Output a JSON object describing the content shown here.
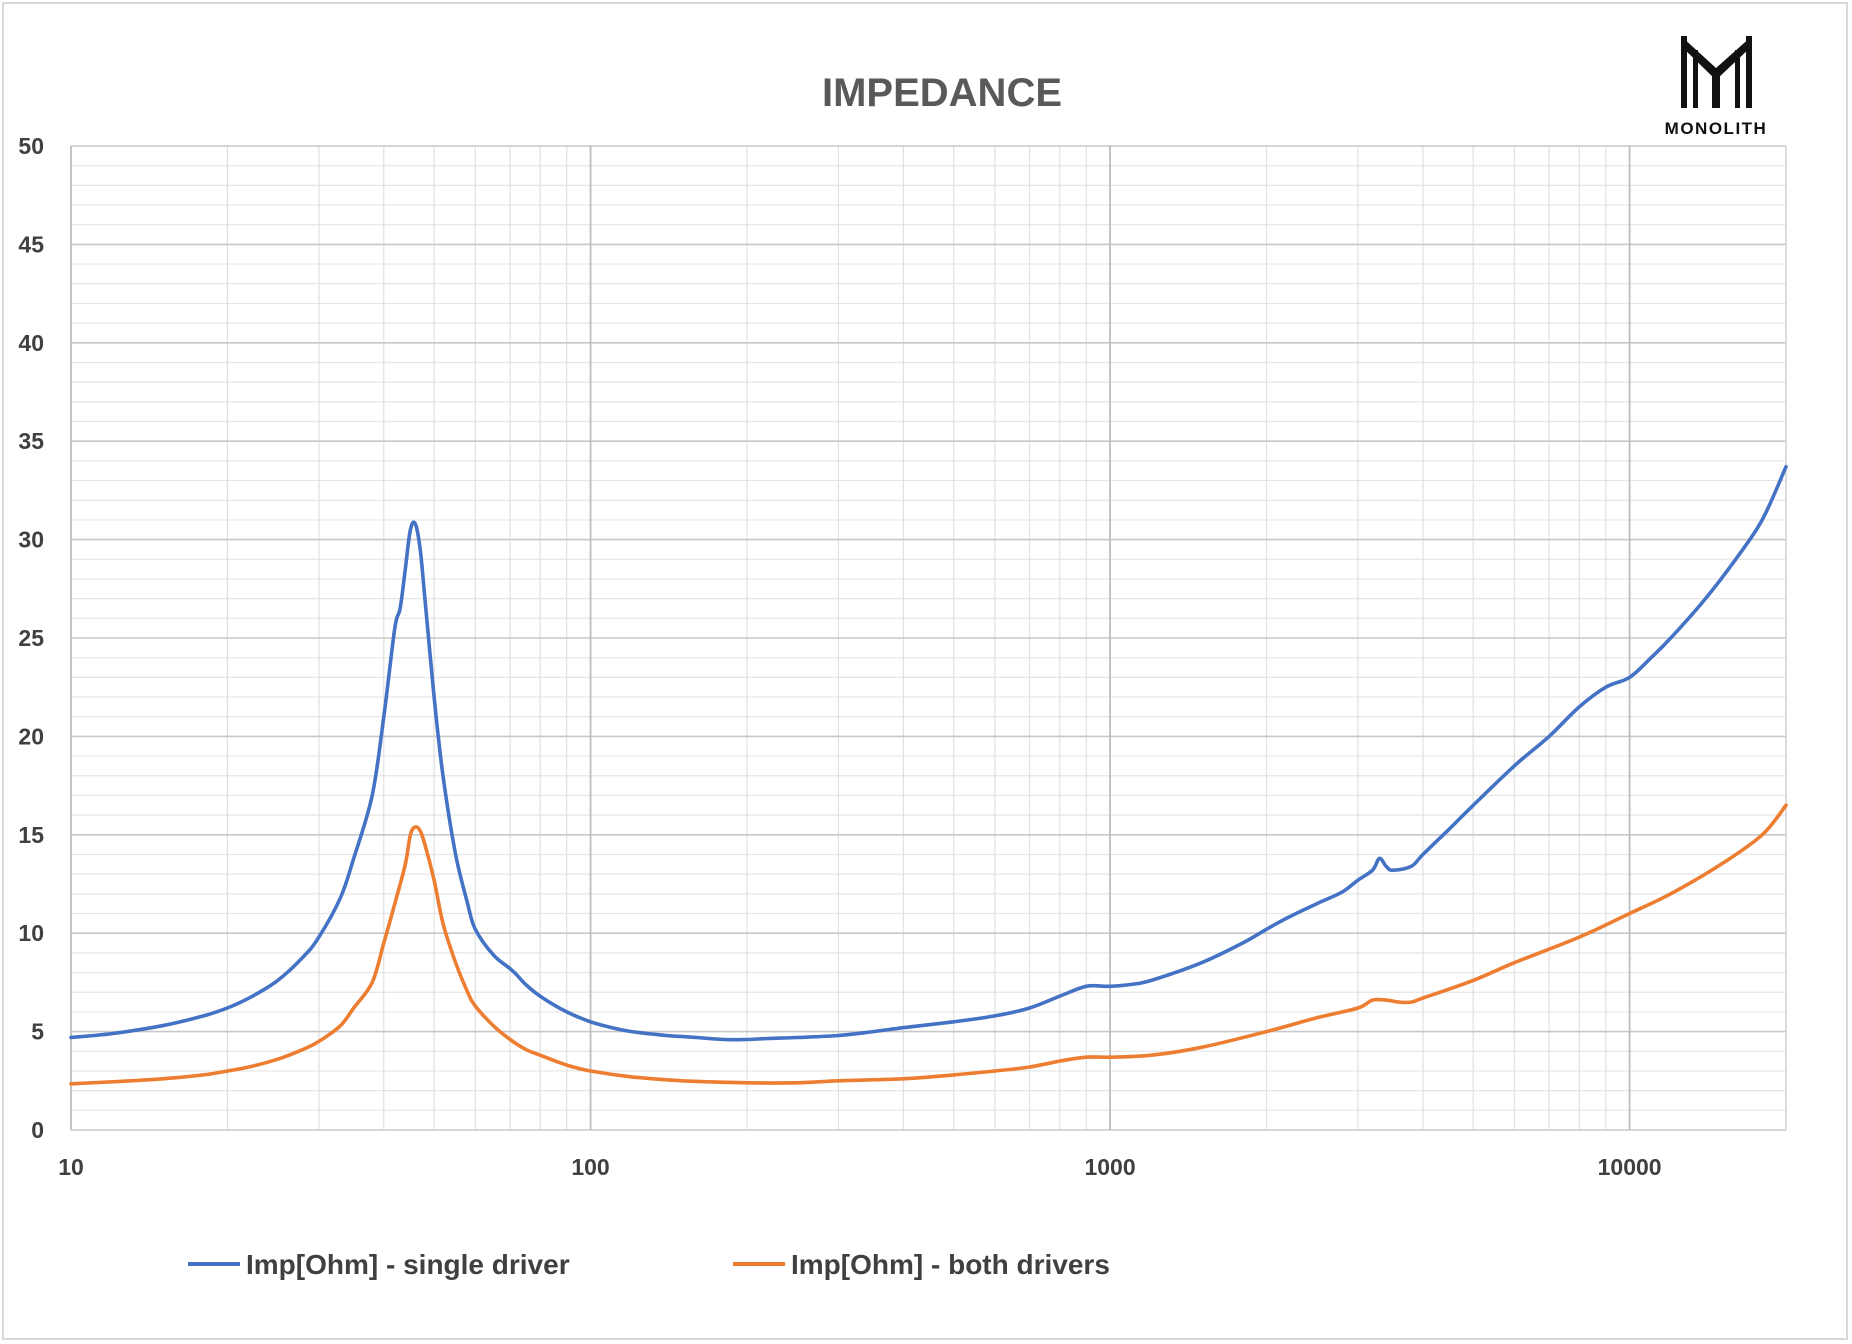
{
  "chart_data": {
    "type": "line",
    "title": "IMPEDANCE",
    "xlabel": "",
    "ylabel": "",
    "x_scale": "log",
    "xlim": [
      10,
      20000
    ],
    "ylim": [
      0,
      50
    ],
    "x_ticks": [
      "10",
      "100",
      "1000",
      "10000"
    ],
    "y_ticks": [
      "0",
      "5",
      "10",
      "15",
      "20",
      "25",
      "30",
      "35",
      "40",
      "45",
      "50"
    ],
    "grid": true,
    "legend_position": "bottom",
    "brand": "MONOLITH",
    "series": [
      {
        "name": "Imp[Ohm] - single driver",
        "color": "#4472c4",
        "x": [
          10,
          12,
          15,
          18,
          20,
          22,
          25,
          28,
          30,
          33,
          35,
          38,
          40,
          42,
          43,
          44,
          45,
          46,
          47,
          48,
          50,
          52,
          55,
          58,
          60,
          65,
          70,
          72,
          75,
          80,
          90,
          100,
          110,
          120,
          140,
          150,
          160,
          180,
          200,
          220,
          250,
          300,
          350,
          400,
          500,
          600,
          700,
          800,
          900,
          1000,
          1100,
          1200,
          1500,
          1800,
          2000,
          2200,
          2500,
          2800,
          3000,
          3200,
          3300,
          3400,
          3500,
          3800,
          4000,
          4500,
          5000,
          6000,
          7000,
          8000,
          9000,
          10000,
          11000,
          12000,
          14000,
          16000,
          18000,
          20000
        ],
        "y": [
          4.7,
          4.9,
          5.3,
          5.8,
          6.2,
          6.7,
          7.6,
          8.8,
          9.8,
          11.8,
          13.8,
          17.0,
          21.0,
          25.5,
          26.5,
          28.5,
          30.5,
          30.8,
          29.5,
          27.0,
          22.0,
          18.0,
          14.0,
          11.5,
          10.2,
          8.9,
          8.2,
          7.9,
          7.4,
          6.8,
          6.0,
          5.5,
          5.2,
          5.0,
          4.8,
          4.75,
          4.7,
          4.6,
          4.6,
          4.65,
          4.7,
          4.8,
          5.0,
          5.2,
          5.5,
          5.8,
          6.2,
          6.8,
          7.3,
          7.3,
          7.4,
          7.6,
          8.5,
          9.5,
          10.2,
          10.8,
          11.5,
          12.1,
          12.7,
          13.2,
          13.8,
          13.4,
          13.2,
          13.4,
          14.0,
          15.3,
          16.5,
          18.5,
          20.0,
          21.5,
          22.5,
          23.0,
          24.0,
          25.0,
          27.0,
          29.0,
          31.0,
          33.7
        ]
      },
      {
        "name": "Imp[Ohm] - both drivers",
        "color": "#ed7d31",
        "x": [
          10,
          12,
          15,
          18,
          20,
          22,
          25,
          28,
          30,
          33,
          35,
          38,
          40,
          42,
          44,
          45,
          46,
          47,
          48,
          50,
          52,
          55,
          58,
          60,
          65,
          70,
          75,
          80,
          90,
          100,
          120,
          150,
          200,
          250,
          300,
          400,
          500,
          600,
          700,
          800,
          900,
          1000,
          1200,
          1500,
          2000,
          2500,
          3000,
          3200,
          3400,
          3600,
          3800,
          4000,
          5000,
          6000,
          8000,
          10000,
          12000,
          15000,
          18000,
          20000
        ],
        "y": [
          2.35,
          2.45,
          2.6,
          2.8,
          3.0,
          3.2,
          3.6,
          4.1,
          4.5,
          5.3,
          6.2,
          7.5,
          9.5,
          11.5,
          13.5,
          15.0,
          15.4,
          15.2,
          14.5,
          12.7,
          10.5,
          8.5,
          7.0,
          6.3,
          5.3,
          4.6,
          4.1,
          3.8,
          3.3,
          3.0,
          2.7,
          2.5,
          2.4,
          2.4,
          2.5,
          2.6,
          2.8,
          3.0,
          3.2,
          3.5,
          3.7,
          3.7,
          3.8,
          4.2,
          5.0,
          5.7,
          6.2,
          6.6,
          6.6,
          6.5,
          6.5,
          6.7,
          7.6,
          8.5,
          9.8,
          11.0,
          12.0,
          13.5,
          15.0,
          16.5
        ]
      }
    ]
  }
}
